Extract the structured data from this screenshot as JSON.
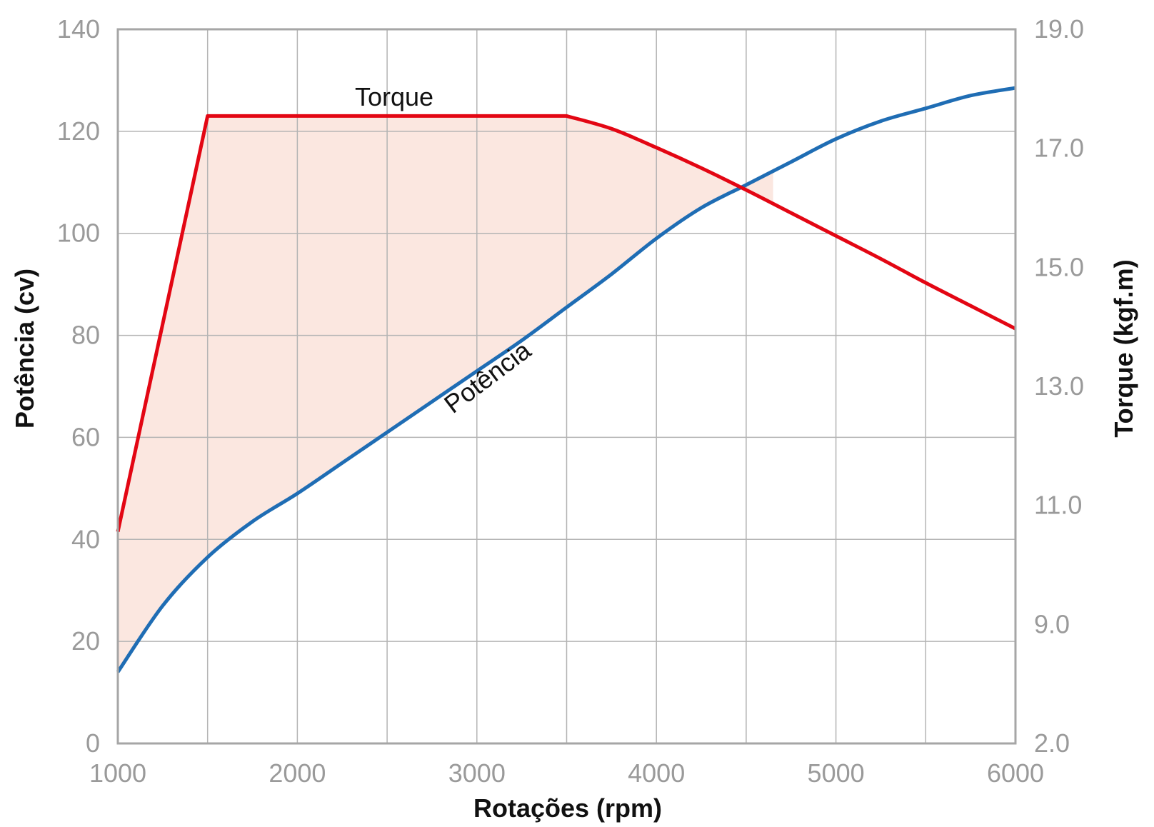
{
  "chart_data": {
    "type": "line",
    "x_axis": {
      "label": "Rotações (rpm)",
      "range": [
        1000,
        6000
      ],
      "ticks": [
        1000,
        2000,
        3000,
        4000,
        5000,
        6000
      ],
      "tick_labels": [
        "1000",
        "2000",
        "3000",
        "4000",
        "5000",
        "6000"
      ],
      "minor_gridlines": [
        1500,
        2500,
        3500,
        4500,
        5500
      ]
    },
    "y_left": {
      "label": "Potência (cv)",
      "range": [
        0,
        140
      ],
      "ticks": [
        0,
        20,
        40,
        60,
        80,
        100,
        120,
        140
      ],
      "tick_labels": [
        "0",
        "20",
        "40",
        "60",
        "80",
        "100",
        "120",
        "140"
      ]
    },
    "y_right": {
      "label": "Torque (kgf.m)",
      "range": [
        2.0,
        19.0
      ],
      "ticks": [
        2.0,
        9.0,
        11.0,
        13.0,
        15.0,
        17.0,
        19.0
      ],
      "tick_labels": [
        "2.0",
        "9.0",
        "11.0",
        "13.0",
        "15.0",
        "17.0",
        "19.0"
      ],
      "tick_positions_on_left_scale": [
        0,
        23.3,
        46.7,
        70,
        93.3,
        116.7,
        140
      ]
    },
    "grid": true,
    "series": [
      {
        "name": "Torque",
        "axis": "right",
        "color": "#e30613",
        "note_values_on_left_scale": true,
        "x": [
          1000,
          1500,
          2000,
          2500,
          3000,
          3500,
          3750,
          4000,
          4250,
          4500,
          4750,
          5000,
          5250,
          5500,
          5750,
          6000
        ],
        "y": [
          41.5,
          123,
          123,
          123,
          123,
          123,
          120.5,
          116.8,
          112.8,
          108.5,
          104,
          99.5,
          95,
          90.3,
          85.8,
          81.3
        ]
      },
      {
        "name": "Potência",
        "axis": "left",
        "color": "#1f6db4",
        "x": [
          1000,
          1250,
          1500,
          1750,
          2000,
          2250,
          2500,
          2750,
          3000,
          3250,
          3500,
          3750,
          4000,
          4250,
          4500,
          4750,
          5000,
          5250,
          5500,
          5750,
          6000
        ],
        "y": [
          14,
          27,
          36.5,
          43.5,
          49,
          55,
          61,
          67,
          73,
          79,
          85.5,
          92,
          99,
          105,
          109.5,
          114,
          118.5,
          122,
          124.5,
          127,
          128.5
        ]
      }
    ],
    "fill_between": {
      "series": [
        "Torque",
        "Potência"
      ],
      "color": "#fbe7e0"
    }
  }
}
